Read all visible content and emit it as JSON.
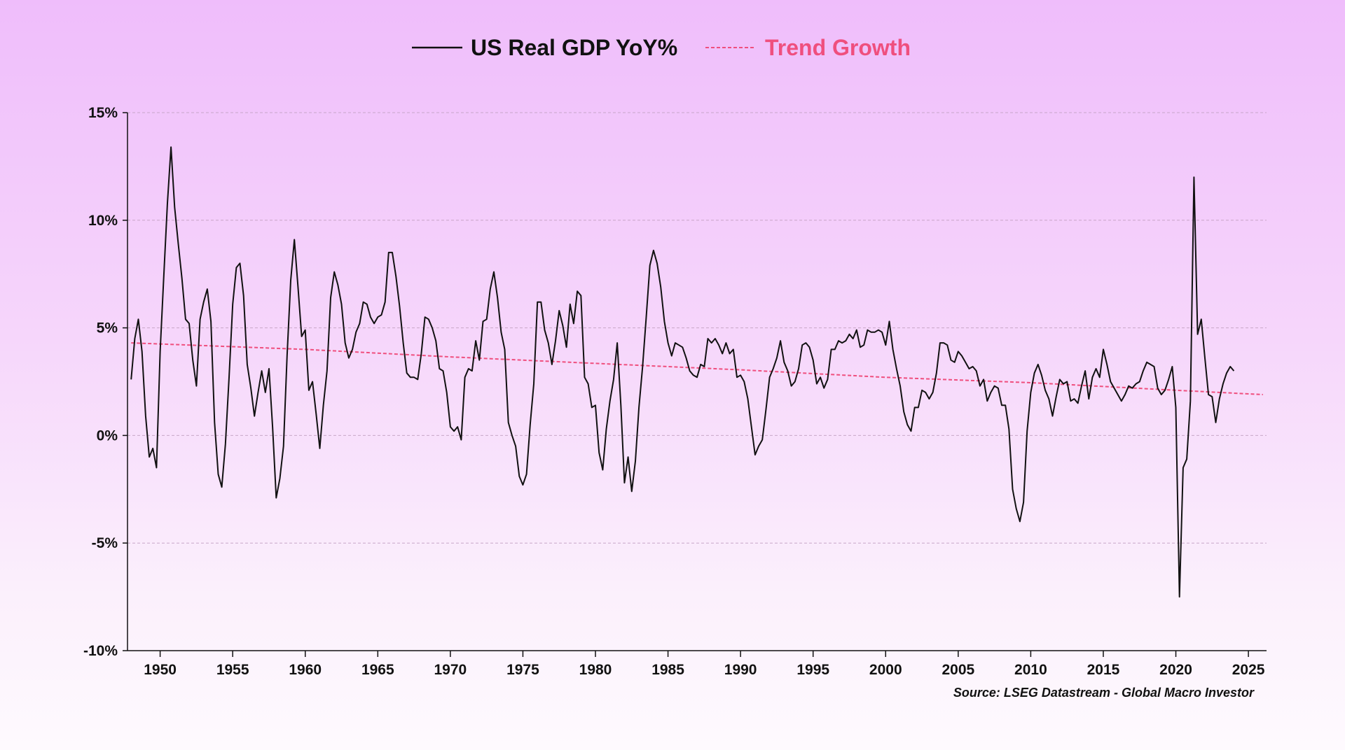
{
  "chart_data": {
    "type": "line",
    "title": "",
    "xlabel": "",
    "ylabel": "",
    "xlim": [
      1947.75,
      2026.25
    ],
    "ylim": [
      -10,
      15
    ],
    "grid": true,
    "legend_position": "top-center",
    "x_ticks": [
      1950,
      1955,
      1960,
      1965,
      1970,
      1975,
      1980,
      1985,
      1990,
      1995,
      2000,
      2005,
      2010,
      2015,
      2020,
      2025
    ],
    "x_tick_labels": [
      "1950",
      "1955",
      "1960",
      "1965",
      "1970",
      "1975",
      "1980",
      "1985",
      "1990",
      "1995",
      "2000",
      "2005",
      "2010",
      "2015",
      "2020",
      "2025"
    ],
    "y_ticks": [
      -10,
      -5,
      0,
      5,
      10,
      15
    ],
    "y_tick_labels": [
      "-10%",
      "-5%",
      "0%",
      "5%",
      "10%",
      "15%"
    ],
    "series": [
      {
        "name": "US Real GDP YoY%",
        "color": "#111111",
        "style": "solid",
        "x": [
          1948.0,
          1948.25,
          1948.5,
          1948.75,
          1949.0,
          1949.25,
          1949.5,
          1949.75,
          1950.0,
          1950.25,
          1950.5,
          1950.75,
          1951.0,
          1951.25,
          1951.5,
          1951.75,
          1952.0,
          1952.25,
          1952.5,
          1952.75,
          1953.0,
          1953.25,
          1953.5,
          1953.75,
          1954.0,
          1954.25,
          1954.5,
          1954.75,
          1955.0,
          1955.25,
          1955.5,
          1955.75,
          1956.0,
          1956.25,
          1956.5,
          1956.75,
          1957.0,
          1957.25,
          1957.5,
          1957.75,
          1958.0,
          1958.25,
          1958.5,
          1958.75,
          1959.0,
          1959.25,
          1959.5,
          1959.75,
          1960.0,
          1960.25,
          1960.5,
          1960.75,
          1961.0,
          1961.25,
          1961.5,
          1961.75,
          1962.0,
          1962.25,
          1962.5,
          1962.75,
          1963.0,
          1963.25,
          1963.5,
          1963.75,
          1964.0,
          1964.25,
          1964.5,
          1964.75,
          1965.0,
          1965.25,
          1965.5,
          1965.75,
          1966.0,
          1966.25,
          1966.5,
          1966.75,
          1967.0,
          1967.25,
          1967.5,
          1967.75,
          1968.0,
          1968.25,
          1968.5,
          1968.75,
          1969.0,
          1969.25,
          1969.5,
          1969.75,
          1970.0,
          1970.25,
          1970.5,
          1970.75,
          1971.0,
          1971.25,
          1971.5,
          1971.75,
          1972.0,
          1972.25,
          1972.5,
          1972.75,
          1973.0,
          1973.25,
          1973.5,
          1973.75,
          1974.0,
          1974.25,
          1974.5,
          1974.75,
          1975.0,
          1975.25,
          1975.5,
          1975.75,
          1976.0,
          1976.25,
          1976.5,
          1976.75,
          1977.0,
          1977.25,
          1977.5,
          1977.75,
          1978.0,
          1978.25,
          1978.5,
          1978.75,
          1979.0,
          1979.25,
          1979.5,
          1979.75,
          1980.0,
          1980.25,
          1980.5,
          1980.75,
          1981.0,
          1981.25,
          1981.5,
          1981.75,
          1982.0,
          1982.25,
          1982.5,
          1982.75,
          1983.0,
          1983.25,
          1983.5,
          1983.75,
          1984.0,
          1984.25,
          1984.5,
          1984.75,
          1985.0,
          1985.25,
          1985.5,
          1985.75,
          1986.0,
          1986.25,
          1986.5,
          1986.75,
          1987.0,
          1987.25,
          1987.5,
          1987.75,
          1988.0,
          1988.25,
          1988.5,
          1988.75,
          1989.0,
          1989.25,
          1989.5,
          1989.75,
          1990.0,
          1990.25,
          1990.5,
          1990.75,
          1991.0,
          1991.25,
          1991.5,
          1991.75,
          1992.0,
          1992.25,
          1992.5,
          1992.75,
          1993.0,
          1993.25,
          1993.5,
          1993.75,
          1994.0,
          1994.25,
          1994.5,
          1994.75,
          1995.0,
          1995.25,
          1995.5,
          1995.75,
          1996.0,
          1996.25,
          1996.5,
          1996.75,
          1997.0,
          1997.25,
          1997.5,
          1997.75,
          1998.0,
          1998.25,
          1998.5,
          1998.75,
          1999.0,
          1999.25,
          1999.5,
          1999.75,
          2000.0,
          2000.25,
          2000.5,
          2000.75,
          2001.0,
          2001.25,
          2001.5,
          2001.75,
          2002.0,
          2002.25,
          2002.5,
          2002.75,
          2003.0,
          2003.25,
          2003.5,
          2003.75,
          2004.0,
          2004.25,
          2004.5,
          2004.75,
          2005.0,
          2005.25,
          2005.5,
          2005.75,
          2006.0,
          2006.25,
          2006.5,
          2006.75,
          2007.0,
          2007.25,
          2007.5,
          2007.75,
          2008.0,
          2008.25,
          2008.5,
          2008.75,
          2009.0,
          2009.25,
          2009.5,
          2009.75,
          2010.0,
          2010.25,
          2010.5,
          2010.75,
          2011.0,
          2011.25,
          2011.5,
          2011.75,
          2012.0,
          2012.25,
          2012.5,
          2012.75,
          2013.0,
          2013.25,
          2013.5,
          2013.75,
          2014.0,
          2014.25,
          2014.5,
          2014.75,
          2015.0,
          2015.25,
          2015.5,
          2015.75,
          2016.0,
          2016.25,
          2016.5,
          2016.75,
          2017.0,
          2017.25,
          2017.5,
          2017.75,
          2018.0,
          2018.25,
          2018.5,
          2018.75,
          2019.0,
          2019.25,
          2019.5,
          2019.75,
          2020.0,
          2020.25,
          2020.5,
          2020.75,
          2021.0,
          2021.25,
          2021.5,
          2021.75,
          2022.0,
          2022.25,
          2022.5,
          2022.75,
          2023.0,
          2023.25,
          2023.5,
          2023.75,
          2024.0
        ],
        "values": [
          2.6,
          4.5,
          5.4,
          3.9,
          0.9,
          -1.0,
          -0.6,
          -1.5,
          3.9,
          7.4,
          10.8,
          13.4,
          10.6,
          8.9,
          7.3,
          5.4,
          5.2,
          3.5,
          2.3,
          5.4,
          6.2,
          6.8,
          5.3,
          0.6,
          -1.8,
          -2.4,
          -0.4,
          2.7,
          6.1,
          7.8,
          8.0,
          6.5,
          3.3,
          2.2,
          0.9,
          2.0,
          3.0,
          2.0,
          3.1,
          0.4,
          -2.9,
          -2.0,
          -0.5,
          3.7,
          7.2,
          9.1,
          6.9,
          4.6,
          4.9,
          2.1,
          2.5,
          1.0,
          -0.6,
          1.4,
          3.0,
          6.4,
          7.6,
          7.0,
          6.1,
          4.3,
          3.6,
          4.0,
          4.8,
          5.2,
          6.2,
          6.1,
          5.5,
          5.2,
          5.5,
          5.6,
          6.2,
          8.5,
          8.5,
          7.4,
          6.0,
          4.3,
          2.9,
          2.7,
          2.7,
          2.6,
          3.8,
          5.5,
          5.4,
          5.0,
          4.4,
          3.1,
          3.0,
          2.0,
          0.4,
          0.2,
          0.4,
          -0.2,
          2.7,
          3.1,
          3.0,
          4.4,
          3.5,
          5.3,
          5.4,
          6.8,
          7.6,
          6.4,
          4.8,
          4.0,
          0.6,
          0.0,
          -0.5,
          -1.9,
          -2.3,
          -1.8,
          0.5,
          2.4,
          6.2,
          6.2,
          4.9,
          4.3,
          3.3,
          4.4,
          5.8,
          5.1,
          4.1,
          6.1,
          5.2,
          6.7,
          6.5,
          2.7,
          2.4,
          1.3,
          1.4,
          -0.8,
          -1.6,
          0.3,
          1.6,
          2.6,
          4.3,
          1.4,
          -2.2,
          -1.0,
          -2.6,
          -1.2,
          1.3,
          3.2,
          5.5,
          7.9,
          8.6,
          8.0,
          6.9,
          5.3,
          4.3,
          3.7,
          4.3,
          4.2,
          4.1,
          3.6,
          3.0,
          2.8,
          2.7,
          3.3,
          3.2,
          4.5,
          4.3,
          4.5,
          4.2,
          3.8,
          4.3,
          3.8,
          4.0,
          2.7,
          2.8,
          2.5,
          1.7,
          0.4,
          -0.9,
          -0.5,
          -0.2,
          1.2,
          2.7,
          3.1,
          3.6,
          4.4,
          3.4,
          3.0,
          2.3,
          2.5,
          3.1,
          4.2,
          4.3,
          4.1,
          3.5,
          2.4,
          2.7,
          2.2,
          2.6,
          4.0,
          4.0,
          4.4,
          4.3,
          4.4,
          4.7,
          4.5,
          4.9,
          4.1,
          4.2,
          4.9,
          4.8,
          4.8,
          4.9,
          4.8,
          4.2,
          5.3,
          4.0,
          3.1,
          2.3,
          1.1,
          0.5,
          0.2,
          1.3,
          1.3,
          2.1,
          2.0,
          1.7,
          2.0,
          2.9,
          4.3,
          4.3,
          4.2,
          3.5,
          3.4,
          3.9,
          3.7,
          3.4,
          3.1,
          3.2,
          3.0,
          2.3,
          2.6,
          1.6,
          2.0,
          2.3,
          2.2,
          1.4,
          1.4,
          0.3,
          -2.5,
          -3.4,
          -4.0,
          -3.1,
          0.2,
          2.0,
          2.9,
          3.3,
          2.8,
          2.1,
          1.7,
          0.9,
          1.8,
          2.6,
          2.4,
          2.5,
          1.6,
          1.7,
          1.5,
          2.3,
          3.0,
          1.7,
          2.7,
          3.1,
          2.7,
          4.0,
          3.3,
          2.5,
          2.2,
          1.9,
          1.6,
          1.9,
          2.3,
          2.2,
          2.4,
          2.5,
          3.0,
          3.4,
          3.3,
          3.2,
          2.2,
          1.9,
          2.1,
          2.6,
          3.2,
          1.3,
          -7.5,
          -1.5,
          -1.1,
          1.6,
          12.0,
          4.7,
          5.4,
          3.6,
          1.9,
          1.8,
          0.6,
          1.7,
          2.4,
          2.9,
          3.2,
          3.0
        ],
        "trend_note": "final value ~3.0% at 2024"
      },
      {
        "name": "Trend Growth",
        "color": "#ef4f7e",
        "style": "dashed",
        "x": [
          1948,
          1960,
          1970,
          1980,
          1990,
          2000,
          2010,
          2020,
          2026
        ],
        "values": [
          4.3,
          4.0,
          3.65,
          3.35,
          3.05,
          2.7,
          2.45,
          2.1,
          1.9
        ]
      }
    ],
    "annotations": [
      "Source: LSEG Datastream - Global Macro Investor"
    ]
  },
  "source_text": "Source: LSEG Datastream - Global Macro Investor",
  "colors": {
    "axis": "#111111",
    "grid": "#c8a6c8",
    "gdp_line": "#111111",
    "trend_line": "#ef4f7e"
  }
}
